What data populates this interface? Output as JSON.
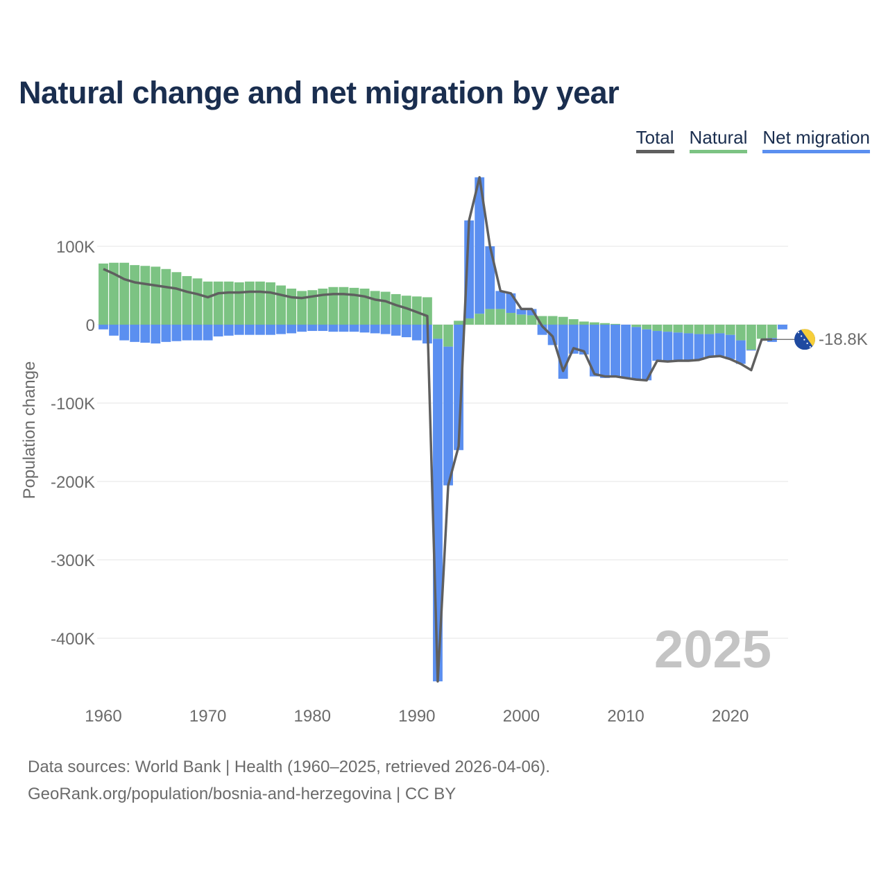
{
  "title": "Natural change and net migration by year",
  "legend": {
    "total": "Total",
    "natural": "Natural",
    "net_migration": "Net migration"
  },
  "colors": {
    "title": "#1a2e4f",
    "total": "#5f5f5f",
    "natural": "#7cc383",
    "net_migration": "#5b8ff0",
    "axis_text": "#6b6b6b",
    "grid": "#e6e6e6",
    "year_watermark": "#c4c4c4",
    "flag_blue": "#1f4aa0",
    "flag_yellow": "#f6ce3a"
  },
  "footer": {
    "line1": "Data sources: World Bank | Health (1960–2025, retrieved 2026-04-06).",
    "line2": "GeoRank.org/population/bosnia-and-herzegovina | CC BY"
  },
  "chart_data": {
    "type": "bar",
    "stacked": true,
    "title": "Natural change and net migration by year",
    "xlabel": "",
    "ylabel": "Population change",
    "xlim": [
      1960,
      2025
    ],
    "ylim": [
      -455000,
      190000
    ],
    "x_ticks": [
      1960,
      1970,
      1980,
      1990,
      2000,
      2010,
      2020
    ],
    "y_ticks": [
      100000,
      0,
      -100000,
      -200000,
      -300000,
      -400000
    ],
    "y_tick_labels": [
      "100K",
      "0",
      "-100K",
      "-200K",
      "-300K",
      "-400K"
    ],
    "grid": true,
    "year_label": "2025",
    "end_annotation": "-18.8K",
    "x": [
      1960,
      1961,
      1962,
      1963,
      1964,
      1965,
      1966,
      1967,
      1968,
      1969,
      1970,
      1971,
      1972,
      1973,
      1974,
      1975,
      1976,
      1977,
      1978,
      1979,
      1980,
      1981,
      1982,
      1983,
      1984,
      1985,
      1986,
      1987,
      1988,
      1989,
      1990,
      1991,
      1992,
      1993,
      1994,
      1995,
      1996,
      1997,
      1998,
      1999,
      2000,
      2001,
      2002,
      2003,
      2004,
      2005,
      2006,
      2007,
      2008,
      2009,
      2010,
      2011,
      2012,
      2013,
      2014,
      2015,
      2016,
      2017,
      2018,
      2019,
      2020,
      2021,
      2022,
      2023,
      2024,
      2025
    ],
    "series": [
      {
        "name": "Natural",
        "values": [
          78000,
          79000,
          79000,
          76000,
          75000,
          74000,
          71000,
          67000,
          62000,
          59000,
          55000,
          55000,
          55000,
          54000,
          55000,
          55000,
          54000,
          50000,
          46000,
          43000,
          44000,
          46000,
          48000,
          48000,
          47000,
          46000,
          43000,
          42000,
          39000,
          37000,
          36000,
          35000,
          -18000,
          -28000,
          5000,
          8000,
          14000,
          20000,
          20000,
          15000,
          13000,
          12000,
          11000,
          11000,
          10000,
          7000,
          4000,
          3000,
          2000,
          1000,
          0,
          -3000,
          -6000,
          -8000,
          -9000,
          -10000,
          -11000,
          -12000,
          -12000,
          -11000,
          -13000,
          -20000,
          -32000,
          -18000,
          -17000,
          0
        ]
      },
      {
        "name": "Net migration",
        "values": [
          -6000,
          -14000,
          -20000,
          -22000,
          -23000,
          -24000,
          -22000,
          -21000,
          -20000,
          -20000,
          -20000,
          -15000,
          -14000,
          -13000,
          -13000,
          -13000,
          -13000,
          -12000,
          -11000,
          -9000,
          -8000,
          -8000,
          -9000,
          -9000,
          -9000,
          -10000,
          -11000,
          -12000,
          -14000,
          -16000,
          -20000,
          -24000,
          -437000,
          -177000,
          -160000,
          125000,
          174000,
          80000,
          23000,
          25000,
          7000,
          8000,
          -13000,
          -26000,
          -69000,
          -37000,
          -38000,
          -66000,
          -68000,
          -67000,
          -68000,
          -67000,
          -65000,
          -38000,
          -38000,
          -36000,
          -35000,
          -33000,
          -29000,
          -29000,
          -31000,
          -30000,
          -1000,
          0,
          -5000,
          -6000
        ]
      },
      {
        "name": "Total",
        "values": [
          71000,
          65000,
          58000,
          54000,
          52000,
          50000,
          48000,
          46000,
          42000,
          39000,
          35000,
          40000,
          41000,
          41000,
          42000,
          42000,
          41000,
          38000,
          35000,
          34000,
          36000,
          38000,
          39000,
          39000,
          38000,
          36000,
          32000,
          30000,
          25000,
          21000,
          16000,
          11000,
          -455000,
          -205000,
          -155000,
          133000,
          188000,
          100000,
          43000,
          40000,
          20000,
          20000,
          -2000,
          -15000,
          -59000,
          -30000,
          -34000,
          -63000,
          -66000,
          -66000,
          -68000,
          -70000,
          -71000,
          -46000,
          -47000,
          -46000,
          -46000,
          -45000,
          -41000,
          -40000,
          -44000,
          -50000,
          -58000,
          -19000,
          -18800,
          -18800
        ]
      }
    ]
  }
}
